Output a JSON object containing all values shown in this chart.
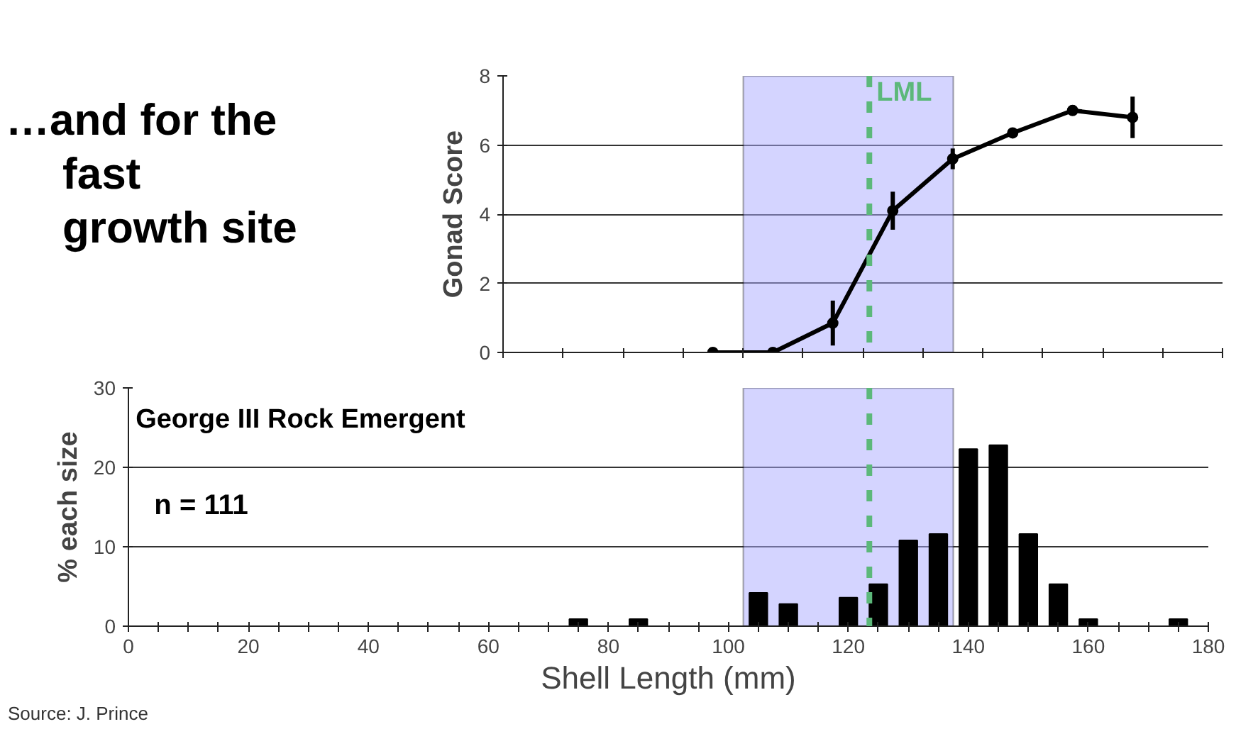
{
  "chart_data": [
    {
      "type": "line",
      "title": "…and for the fast growth site",
      "ylabel": "Gonad Score",
      "categories": [
        null,
        null,
        null,
        null,
        null,
        null,
        null,
        null,
        null,
        null,
        null,
        null
      ],
      "ylim": [
        0,
        8
      ],
      "yticks": [
        0,
        2,
        4,
        6,
        8
      ],
      "grid": "y",
      "tick_labels": "y",
      "marker": "circle",
      "series": [
        {
          "color": "#000000",
          "values": [
            null,
            null,
            null,
            0,
            0,
            0.85,
            4.1,
            5.6,
            6.35,
            7.0,
            6.8,
            null
          ],
          "errors": [
            null,
            null,
            null,
            null,
            null,
            0.65,
            0.55,
            0.3,
            null,
            0.15,
            0.6,
            null
          ]
        }
      ]
    },
    {
      "type": "bar",
      "xlabel": "Shell Length (mm)",
      "ylabel": "% each size",
      "xlim": [
        0,
        180
      ],
      "xticks": [
        0,
        {
          "value": 5,
          "label": null
        },
        {
          "value": 10,
          "label": null
        },
        {
          "value": 15,
          "label": null
        },
        20,
        {
          "value": 25,
          "label": null
        },
        {
          "value": 30,
          "label": null
        },
        {
          "value": 35,
          "label": null
        },
        40,
        {
          "value": 45,
          "label": null
        },
        {
          "value": 50,
          "label": null
        },
        {
          "value": 55,
          "label": null
        },
        60,
        {
          "value": 65,
          "label": null
        },
        {
          "value": 70,
          "label": null
        },
        {
          "value": 75,
          "label": null
        },
        80,
        {
          "value": 85,
          "label": null
        },
        {
          "value": 90,
          "label": null
        },
        {
          "value": 95,
          "label": null
        },
        100,
        {
          "value": 105,
          "label": null
        },
        {
          "value": 110,
          "label": null
        },
        {
          "value": 115,
          "label": null
        },
        120,
        {
          "value": 125,
          "label": null
        },
        {
          "value": 130,
          "label": null
        },
        {
          "value": 135,
          "label": null
        },
        140,
        {
          "value": 145,
          "label": null
        },
        {
          "value": 150,
          "label": null
        },
        {
          "value": 155,
          "label": null
        },
        160,
        {
          "value": 165,
          "label": null
        },
        {
          "value": 170,
          "label": null
        },
        {
          "value": 175,
          "label": null
        },
        180
      ],
      "ylim": [
        0,
        30
      ],
      "yticks": [
        0,
        10,
        20,
        30
      ],
      "grid": "y",
      "x": [
        75,
        85,
        105,
        110,
        120,
        125,
        130,
        135,
        140,
        145,
        150,
        155,
        160,
        175
      ],
      "series": [
        {
          "color": "#000000",
          "values": [
            0.9,
            0.9,
            4.2,
            2.8,
            3.6,
            5.3,
            10.8,
            11.6,
            22.3,
            22.8,
            11.6,
            5.3,
            0.9,
            0.9
          ]
        }
      ],
      "bands": [
        {
          "axis": "x",
          "from": 102.5,
          "to": 137.5,
          "color": "#aaaaff"
        }
      ],
      "ref_lines": [
        {
          "axis": "x",
          "value": 123.5,
          "label": "LML",
          "color": "#5cb87a",
          "line_style": "dashed"
        }
      ],
      "annotations": [
        "George III Rock Emergent",
        "n = 111",
        "Source: J. Prince"
      ]
    }
  ]
}
